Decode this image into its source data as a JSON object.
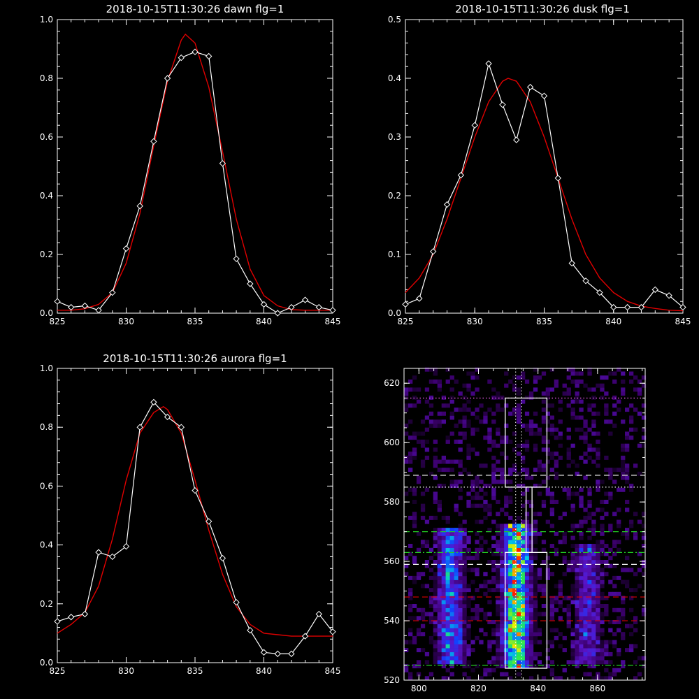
{
  "colors": {
    "background": "#000000",
    "axes": "#ffffff",
    "data_line": "#ffffff",
    "fit_line": "#e00000",
    "green_lines": "#22cc22",
    "red_lines": "#e00000",
    "magenta_dotted": "#ff66ff",
    "white_dotted": "#ffffff"
  },
  "chart_data": [
    {
      "type": "line",
      "title": "2018-10-15T11:30:26 dawn flg=1",
      "xlim": [
        825,
        845
      ],
      "ylim": [
        0,
        1.0
      ],
      "xticks": [
        "825",
        "830",
        "835",
        "840",
        "845"
      ],
      "yticks": [
        "0.0",
        "0.2",
        "0.4",
        "0.6",
        "0.8",
        "1.0"
      ],
      "series": [
        {
          "style": "data",
          "x": [
            825,
            826,
            827,
            828,
            829,
            830,
            831,
            832,
            833,
            834,
            835,
            836,
            837,
            838,
            839,
            840,
            841,
            842,
            843,
            844,
            845
          ],
          "y": [
            0.04,
            0.02,
            0.025,
            0.01,
            0.07,
            0.22,
            0.365,
            0.585,
            0.8,
            0.87,
            0.89,
            0.875,
            0.51,
            0.185,
            0.1,
            0.03,
            0.0,
            0.02,
            0.045,
            0.02,
            0.01
          ]
        },
        {
          "style": "fit",
          "x": [
            825,
            826,
            827,
            828,
            829,
            830,
            831,
            832,
            833,
            834,
            834.3,
            835,
            836,
            837,
            838,
            839,
            840,
            841,
            842,
            843,
            844,
            845
          ],
          "y": [
            0.01,
            0.01,
            0.015,
            0.03,
            0.07,
            0.17,
            0.34,
            0.57,
            0.79,
            0.93,
            0.95,
            0.92,
            0.77,
            0.55,
            0.32,
            0.15,
            0.06,
            0.025,
            0.012,
            0.01,
            0.01,
            0.01
          ]
        }
      ]
    },
    {
      "type": "line",
      "title": "2018-10-15T11:30:26 dusk flg=1",
      "xlim": [
        825,
        845
      ],
      "ylim": [
        0,
        0.5
      ],
      "xticks": [
        "825",
        "830",
        "835",
        "840",
        "845"
      ],
      "yticks": [
        "0.0",
        "0.1",
        "0.2",
        "0.3",
        "0.4",
        "0.5"
      ],
      "series": [
        {
          "style": "data",
          "x": [
            825,
            826,
            827,
            828,
            829,
            830,
            831,
            832,
            833,
            834,
            835,
            836,
            837,
            838,
            839,
            840,
            841,
            842,
            843,
            844,
            845
          ],
          "y": [
            0.015,
            0.025,
            0.105,
            0.185,
            0.235,
            0.32,
            0.425,
            0.355,
            0.295,
            0.385,
            0.37,
            0.23,
            0.085,
            0.055,
            0.035,
            0.01,
            0.01,
            0.01,
            0.04,
            0.03,
            0.01
          ]
        },
        {
          "style": "fit",
          "x": [
            825,
            826,
            827,
            828,
            829,
            830,
            831,
            832,
            832.4,
            833,
            834,
            835,
            836,
            837,
            838,
            839,
            840,
            841,
            842,
            843,
            844,
            845
          ],
          "y": [
            0.035,
            0.06,
            0.1,
            0.16,
            0.23,
            0.3,
            0.36,
            0.395,
            0.4,
            0.395,
            0.36,
            0.3,
            0.23,
            0.16,
            0.1,
            0.06,
            0.035,
            0.02,
            0.012,
            0.008,
            0.005,
            0.004
          ]
        }
      ]
    },
    {
      "type": "line",
      "title": "2018-10-15T11:30:26 aurora flg=1",
      "xlim": [
        825,
        845
      ],
      "ylim": [
        0,
        1.0
      ],
      "xticks": [
        "825",
        "830",
        "835",
        "840",
        "845"
      ],
      "yticks": [
        "0.0",
        "0.2",
        "0.4",
        "0.6",
        "0.8",
        "1.0"
      ],
      "series": [
        {
          "style": "data",
          "x": [
            825,
            826,
            827,
            828,
            829,
            830,
            831,
            832,
            833,
            834,
            835,
            836,
            837,
            838,
            839,
            840,
            841,
            842,
            843,
            844,
            845
          ],
          "y": [
            0.14,
            0.155,
            0.165,
            0.375,
            0.36,
            0.395,
            0.8,
            0.885,
            0.835,
            0.8,
            0.585,
            0.48,
            0.355,
            0.205,
            0.11,
            0.035,
            0.03,
            0.03,
            0.09,
            0.165,
            0.105
          ]
        },
        {
          "style": "fit",
          "x": [
            825,
            826,
            827,
            828,
            829,
            830,
            831,
            832,
            832.7,
            833,
            834,
            835,
            836,
            837,
            838,
            839,
            840,
            841,
            842,
            843,
            844,
            845
          ],
          "y": [
            0.1,
            0.13,
            0.17,
            0.26,
            0.42,
            0.62,
            0.78,
            0.85,
            0.87,
            0.86,
            0.78,
            0.62,
            0.45,
            0.3,
            0.19,
            0.13,
            0.1,
            0.095,
            0.09,
            0.09,
            0.09,
            0.09
          ]
        }
      ]
    },
    {
      "type": "heatmap",
      "title": "",
      "xlim": [
        795,
        876
      ],
      "ylim": [
        520,
        625
      ],
      "xticks": [
        "800",
        "820",
        "840",
        "860"
      ],
      "yticks": [
        "520",
        "540",
        "560",
        "580",
        "600",
        "620"
      ],
      "bands": [
        {
          "x_center": 810,
          "x_width": 8,
          "y_range": [
            525,
            570
          ],
          "peak": 0.55
        },
        {
          "x_center": 832,
          "x_width": 8,
          "y_range": [
            524,
            572
          ],
          "peak": 1.0
        },
        {
          "x_center": 856,
          "x_width": 8,
          "y_range": [
            525,
            565
          ],
          "peak": 0.35
        }
      ],
      "boxes": [
        {
          "x": [
            829,
            843
          ],
          "y": [
            585,
            615
          ]
        },
        {
          "x": [
            829,
            843
          ],
          "y": [
            524,
            563
          ]
        },
        {
          "x": [
            836,
            838
          ],
          "y": [
            563,
            585
          ]
        }
      ],
      "hlines": [
        {
          "y": 615,
          "style": "dotted",
          "color": "magenta"
        },
        {
          "y": 589,
          "style": "dashed",
          "color": "white"
        },
        {
          "y": 585,
          "style": "dotted",
          "color": "white"
        },
        {
          "y": 570,
          "style": "dashed",
          "color": "green"
        },
        {
          "y": 563,
          "style": "dashdot",
          "color": "green"
        },
        {
          "y": 559,
          "style": "dashed",
          "color": "white"
        },
        {
          "y": 548,
          "style": "dashed",
          "color": "red"
        },
        {
          "y": 540,
          "style": "dashed",
          "color": "red"
        },
        {
          "y": 525,
          "style": "dashdot",
          "color": "green"
        }
      ],
      "vlines": [
        {
          "x": 832.5,
          "style": "dotted",
          "color": "white"
        },
        {
          "x": 834.5,
          "style": "dotted",
          "color": "white"
        }
      ]
    }
  ]
}
